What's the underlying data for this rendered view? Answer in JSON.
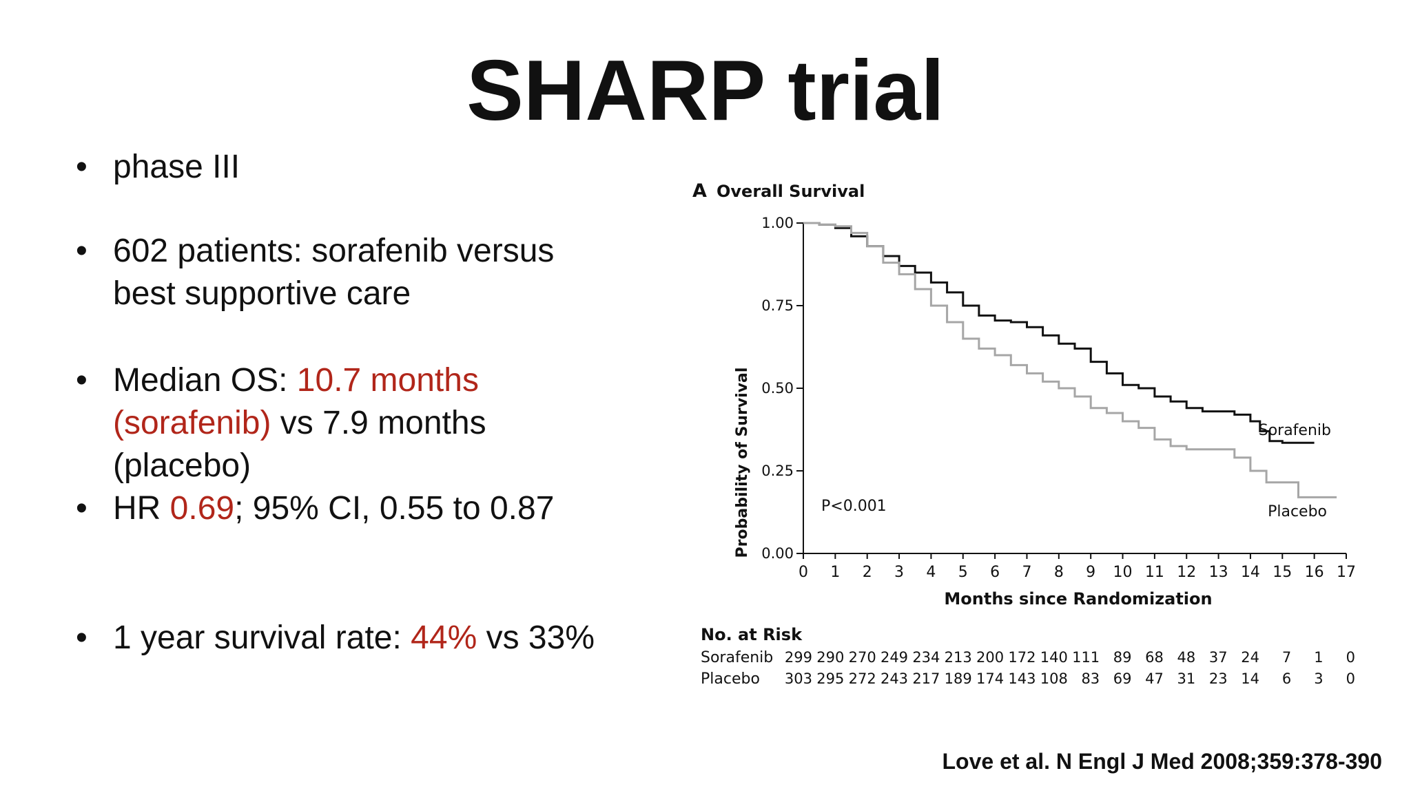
{
  "slide": {
    "title": "SHARP trial",
    "bullets": [
      [
        {
          "t": "phase III"
        }
      ],
      [
        {
          "t": "602 patients: sorafenib versus best supportive care"
        }
      ],
      [
        {
          "t": "Median OS: "
        },
        {
          "t": "10.7 months (sorafenib)",
          "hl": true
        },
        {
          "t": " vs 7.9 months (placebo)"
        }
      ],
      [
        {
          "t": "HR "
        },
        {
          "t": "0.69",
          "hl": true
        },
        {
          "t": "; 95% CI, 0.55 to 0.87"
        }
      ],
      [
        {
          "t": "1 year survival rate: "
        },
        {
          "t": "44%",
          "hl": true
        },
        {
          "t": " vs 33%"
        }
      ]
    ],
    "citation": "Love et al. N Engl J Med 2008;359:378-390",
    "highlight_color": "#b1261a"
  },
  "chart_data": {
    "type": "line",
    "panel_label": "A",
    "title": "Overall Survival",
    "xlabel": "Months since Randomization",
    "ylabel": "Probability of Survival",
    "xlim": [
      0,
      17
    ],
    "ylim": [
      0,
      1
    ],
    "x_ticks": [
      0,
      1,
      2,
      3,
      4,
      5,
      6,
      7,
      8,
      9,
      10,
      11,
      12,
      13,
      14,
      15,
      16,
      17
    ],
    "y_ticks": [
      "0.00",
      "0.25",
      "0.50",
      "0.75",
      "1.00"
    ],
    "annotation": "P<0.001",
    "series": [
      {
        "name": "Sorafenib",
        "color": "#111111",
        "points": [
          [
            0,
            1.0
          ],
          [
            0.5,
            0.995
          ],
          [
            1,
            0.985
          ],
          [
            1.5,
            0.96
          ],
          [
            2,
            0.93
          ],
          [
            2.5,
            0.9
          ],
          [
            3,
            0.87
          ],
          [
            3.5,
            0.85
          ],
          [
            4,
            0.82
          ],
          [
            4.5,
            0.79
          ],
          [
            5,
            0.75
          ],
          [
            5.5,
            0.72
          ],
          [
            6,
            0.705
          ],
          [
            6.5,
            0.7
          ],
          [
            7,
            0.685
          ],
          [
            7.5,
            0.66
          ],
          [
            8,
            0.635
          ],
          [
            8.5,
            0.62
          ],
          [
            9,
            0.58
          ],
          [
            9.5,
            0.545
          ],
          [
            10,
            0.51
          ],
          [
            10.5,
            0.5
          ],
          [
            11,
            0.475
          ],
          [
            11.5,
            0.46
          ],
          [
            12,
            0.44
          ],
          [
            12.5,
            0.43
          ],
          [
            13,
            0.43
          ],
          [
            13.5,
            0.42
          ],
          [
            14,
            0.4
          ],
          [
            14.3,
            0.37
          ],
          [
            14.6,
            0.34
          ],
          [
            15,
            0.335
          ],
          [
            15.5,
            0.335
          ],
          [
            16,
            0.335
          ]
        ]
      },
      {
        "name": "Placebo",
        "color": "#a6a6a6",
        "points": [
          [
            0,
            1.0
          ],
          [
            0.5,
            0.995
          ],
          [
            1,
            0.99
          ],
          [
            1.5,
            0.97
          ],
          [
            2,
            0.93
          ],
          [
            2.5,
            0.88
          ],
          [
            3,
            0.845
          ],
          [
            3.5,
            0.8
          ],
          [
            4,
            0.75
          ],
          [
            4.5,
            0.7
          ],
          [
            5,
            0.65
          ],
          [
            5.5,
            0.62
          ],
          [
            6,
            0.6
          ],
          [
            6.5,
            0.57
          ],
          [
            7,
            0.545
          ],
          [
            7.5,
            0.52
          ],
          [
            8,
            0.5
          ],
          [
            8.5,
            0.475
          ],
          [
            9,
            0.44
          ],
          [
            9.5,
            0.425
          ],
          [
            10,
            0.4
          ],
          [
            10.5,
            0.38
          ],
          [
            11,
            0.345
          ],
          [
            11.5,
            0.325
          ],
          [
            12,
            0.315
          ],
          [
            12.5,
            0.315
          ],
          [
            13,
            0.315
          ],
          [
            13.5,
            0.29
          ],
          [
            14,
            0.25
          ],
          [
            14.5,
            0.215
          ],
          [
            15,
            0.215
          ],
          [
            15.5,
            0.17
          ],
          [
            16,
            0.17
          ],
          [
            16.7,
            0.17
          ]
        ]
      }
    ],
    "risk_table": {
      "title": "No. at Risk",
      "rows": [
        {
          "label": "Sorafenib",
          "values": [
            299,
            290,
            270,
            249,
            234,
            213,
            200,
            172,
            140,
            111,
            89,
            68,
            48,
            37,
            24,
            7,
            1,
            0
          ]
        },
        {
          "label": "Placebo",
          "values": [
            303,
            295,
            272,
            243,
            217,
            189,
            174,
            143,
            108,
            83,
            69,
            47,
            31,
            23,
            14,
            6,
            3,
            0
          ]
        }
      ]
    }
  }
}
